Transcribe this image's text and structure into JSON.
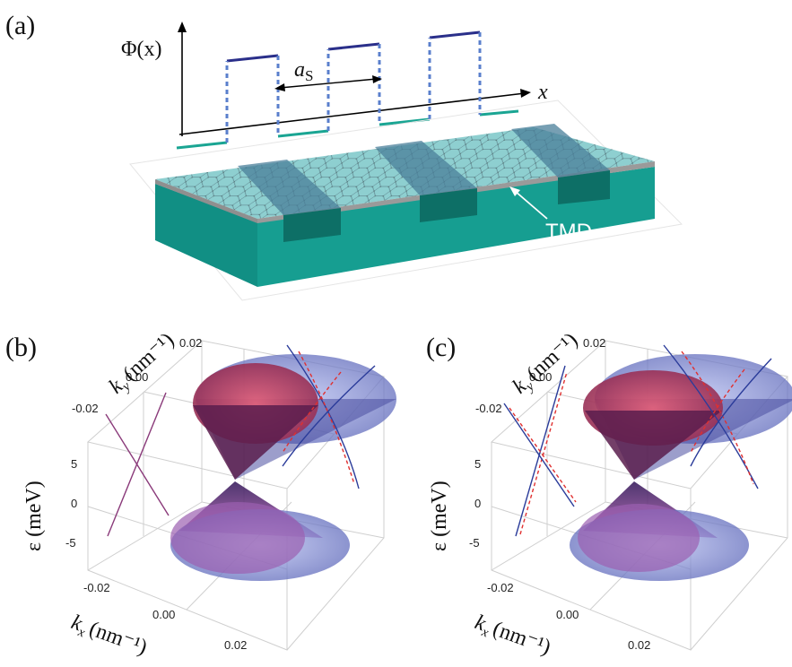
{
  "panels": {
    "a": {
      "label": "(a)",
      "phi_label": "Φ(x)",
      "x_axis_label": "x",
      "period_label_main": "a",
      "period_label_sub": "S",
      "tmd_label": "TMD"
    },
    "b": {
      "label": "(b)",
      "ky_label": "k",
      "ky_sub": "y",
      "ky_unit": "(nm⁻¹)",
      "kx_label": "k",
      "kx_sub": "x",
      "kx_unit": "(nm⁻¹)",
      "eps_label": "ε (meV)",
      "ky_ticks": [
        "0.02",
        "0.00",
        "-0.02"
      ],
      "eps_ticks": [
        "5",
        "0",
        "-5"
      ],
      "kx_ticks": [
        "-0.02",
        "0.00",
        "0.02"
      ]
    },
    "c": {
      "label": "(c)",
      "ky_label": "k",
      "ky_sub": "y",
      "ky_unit": "(nm⁻¹)",
      "kx_label": "k",
      "kx_sub": "x",
      "kx_unit": "(nm⁻¹)",
      "eps_label": "ε (meV)",
      "ky_ticks": [
        "0.02",
        "0.00",
        "-0.02"
      ],
      "eps_ticks": [
        "5",
        "0",
        "-5"
      ],
      "kx_ticks": [
        "-0.02",
        "0.00",
        "0.02"
      ]
    }
  },
  "colors": {
    "potential_high": "#2a2f8a",
    "potential_low": "#1aa593",
    "potential_step": "#5a7fcc",
    "substrate": "#149a8e",
    "substrate_dark": "#0f7d73",
    "tmd_layer": "#9a9a9a",
    "graphene": "#8ecfd0",
    "cone_outer": "#7a86d6",
    "cone_inner": "#c8435e",
    "curve_solid": "#2b3c9a",
    "curve_dashed": "#e03030"
  }
}
